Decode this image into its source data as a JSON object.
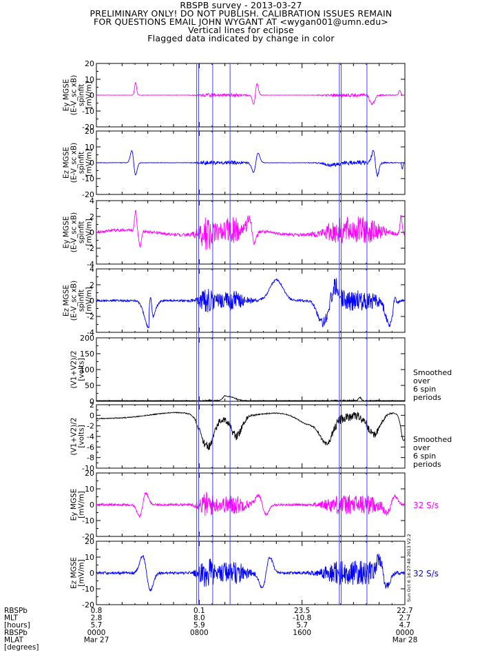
{
  "header": {
    "line1": "RBSPB survey - 2013-03-27",
    "line2": "PRELIMINARY ONLY! DO NOT PUBLISH. CALIBRATION ISSUES REMAIN",
    "line3": "FOR QUESTIONS EMAIL JOHN WYGANT AT <wygan001@umn.edu>",
    "line4": "Vertical lines for eclipse",
    "line5": "Flagged data indicated by change in color"
  },
  "colors": {
    "magenta": "#ff00ff",
    "blue": "#0000ff",
    "black": "#000000",
    "eclipse": "#4040ff"
  },
  "chart_data": {
    "type": "line",
    "x_unit": "UT hours",
    "x_range": [
      0,
      24
    ],
    "eclipse_hours": [
      7.8,
      7.95,
      9.05,
      10.4,
      18.9,
      19.05,
      21.05
    ],
    "panels": [
      {
        "id": "ey_spinfit_1",
        "ylabel_lines": [
          "Ey MGSE",
          "(E-V_sc xB)",
          "spinfit",
          "[mV/m]"
        ],
        "ylim": [
          -20,
          20
        ],
        "ticks": [
          -20,
          -10,
          0,
          10,
          20
        ],
        "color": "magenta",
        "profile": "ey_slow",
        "amp": 1.0,
        "note": ""
      },
      {
        "id": "ez_spinfit_1",
        "ylabel_lines": [
          "Ez MGSE",
          "(E-V_sc xB)",
          "spinfit",
          "[mV/m]"
        ],
        "ylim": [
          -20,
          20
        ],
        "ticks": [
          -20,
          -10,
          0,
          10,
          20
        ],
        "color": "blue",
        "profile": "ez_slow",
        "amp": 1.0,
        "note": ""
      },
      {
        "id": "ey_spinfit_2",
        "ylabel_lines": [
          "Ey MGSE",
          "(E-V_sc xB)",
          "spinfit",
          "[mV/m]"
        ],
        "ylim": [
          -4,
          4
        ],
        "ticks": [
          -4,
          -2,
          0,
          2,
          4
        ],
        "color": "magenta",
        "profile": "ey_fine",
        "amp": 1.0,
        "note": ""
      },
      {
        "id": "ez_spinfit_2",
        "ylabel_lines": [
          "Ez MGSE",
          "(E-V_sc xB)",
          "spinfit",
          "[mV/m]"
        ],
        "ylim": [
          -4,
          4
        ],
        "ticks": [
          -4,
          -2,
          0,
          2,
          4
        ],
        "color": "blue",
        "profile": "ez_fine",
        "amp": 1.0,
        "note": ""
      },
      {
        "id": "vsum_200",
        "ylabel_lines": [
          "(V1+V2)/2",
          "[volts]"
        ],
        "ylim": [
          0,
          200
        ],
        "ticks": [
          0,
          50,
          100,
          150,
          200
        ],
        "color": "black",
        "profile": "v_pos",
        "amp": 1.0,
        "note": "Smoothed\nover\n6 spin\nperiods"
      },
      {
        "id": "vsum_neg",
        "ylabel_lines": [
          "(V1+V2)/2",
          "[volts]"
        ],
        "ylim": [
          -10,
          2
        ],
        "ticks": [
          -10,
          -8,
          -6,
          -4,
          -2,
          0,
          2
        ],
        "color": "black",
        "profile": "v_neg",
        "amp": 1.0,
        "note": "Smoothed\nover\n6 spin\nperiods"
      },
      {
        "id": "ey_32",
        "ylabel_lines": [
          "Ey MGSE",
          "[mV/m]"
        ],
        "ylim": [
          -20,
          20
        ],
        "ticks": [
          -20,
          -10,
          0,
          10,
          20
        ],
        "color": "magenta",
        "profile": "e_32",
        "amp": 1.0,
        "note": "32 S/s"
      },
      {
        "id": "ez_32",
        "ylabel_lines": [
          "Ez MGSE",
          "[mV/m]"
        ],
        "ylim": [
          -20,
          20
        ],
        "ticks": [
          -20,
          -10,
          0,
          10,
          20
        ],
        "color": "blue",
        "profile": "e_32z",
        "amp": 1.0,
        "note": "32 S/s"
      }
    ],
    "footer": {
      "row_labels": [
        "RBSPb",
        "MLT",
        "[hours]",
        "RBSPb",
        "MLAT",
        "[degrees]"
      ],
      "columns": [
        {
          "hour": 0,
          "values": [
            "0.8",
            "2.8",
            "5.7",
            "0000",
            "Mar 27"
          ]
        },
        {
          "hour": 8,
          "values": [
            "0.1",
            "8.0",
            "5.9",
            "0800",
            ""
          ]
        },
        {
          "hour": 16,
          "values": [
            "23.5",
            "-10.8",
            "5.7",
            "1600",
            ""
          ]
        },
        {
          "hour": 24,
          "values": [
            "22.7",
            "2.7",
            "4.7",
            "0000",
            "Mar 28"
          ]
        }
      ]
    },
    "side_stamp": "Sun Oct 6 16:27:48 2013 V2.2"
  }
}
